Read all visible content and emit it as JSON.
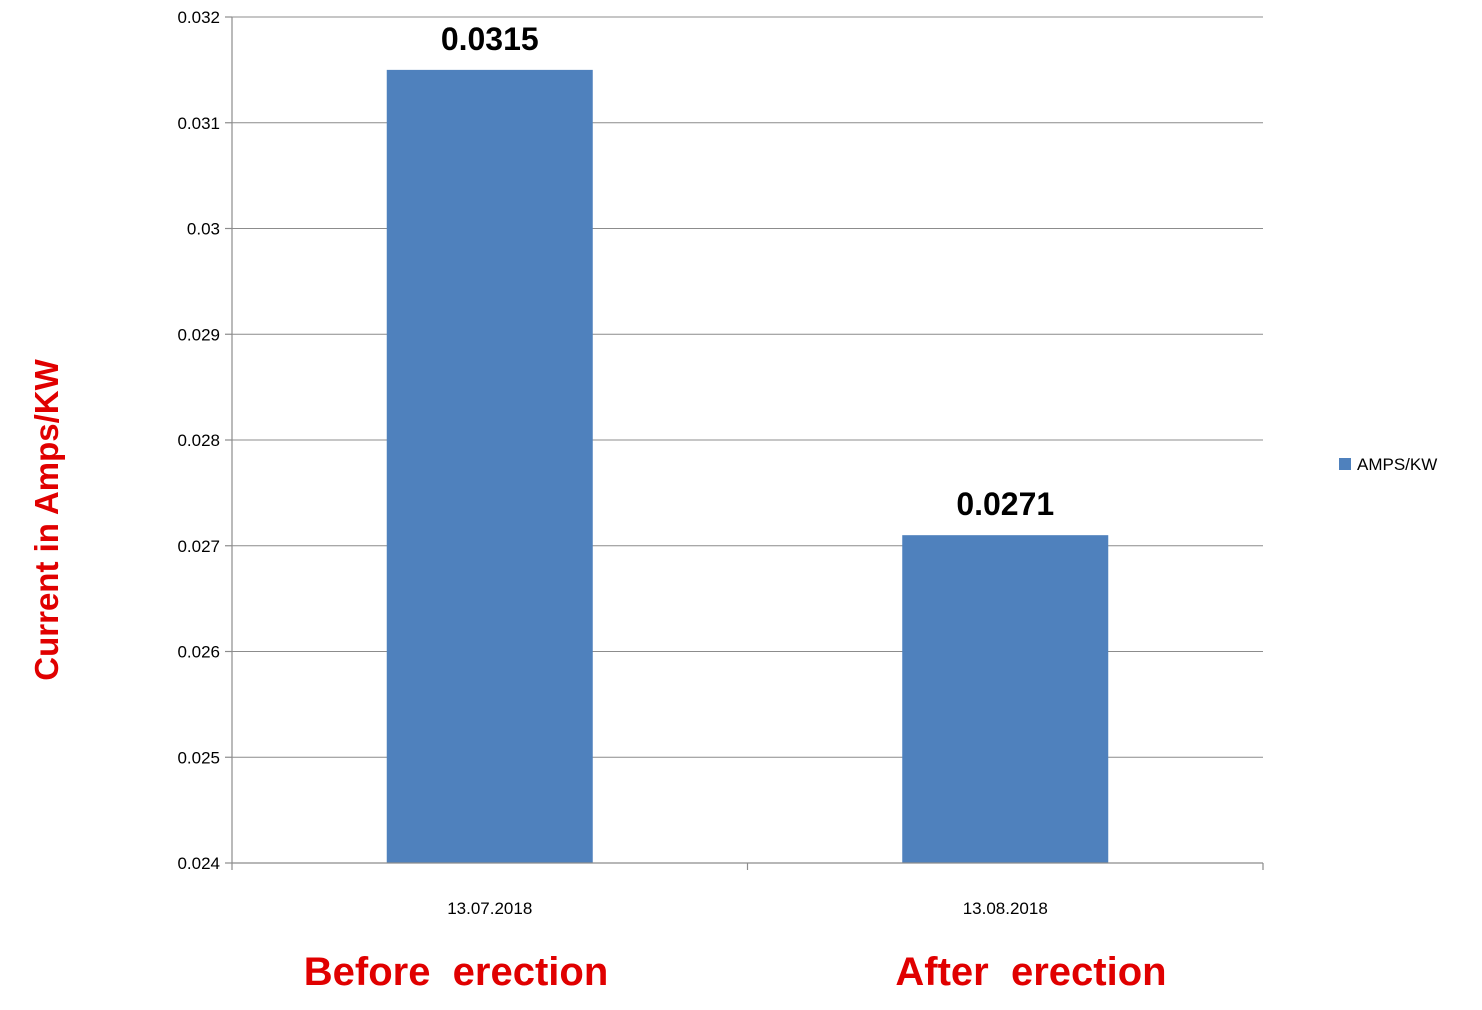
{
  "chart_data": {
    "type": "bar",
    "categories": [
      "13.07.2018",
      "13.08.2018"
    ],
    "series": [
      {
        "name": "AMPS/KW",
        "values": [
          0.0315,
          0.0271
        ],
        "color": "#4f81bd"
      }
    ],
    "data_labels": [
      "0.0315",
      "0.0271"
    ],
    "title": "",
    "xlabel": "",
    "ylabel": "Current in Amps/KW",
    "ylim": [
      0.024,
      0.032
    ],
    "yticks": [
      0.024,
      0.025,
      0.026,
      0.027,
      0.028,
      0.029,
      0.03,
      0.031,
      0.032
    ],
    "ytick_labels": [
      "0.024",
      "0.025",
      "0.026",
      "0.027",
      "0.028",
      "0.029",
      "0.03",
      "0.031",
      "0.032"
    ],
    "grid": true,
    "legend_position": "right",
    "annotations": [
      "Before  erection",
      "After  erection"
    ],
    "annotation_color": "#e00000"
  }
}
